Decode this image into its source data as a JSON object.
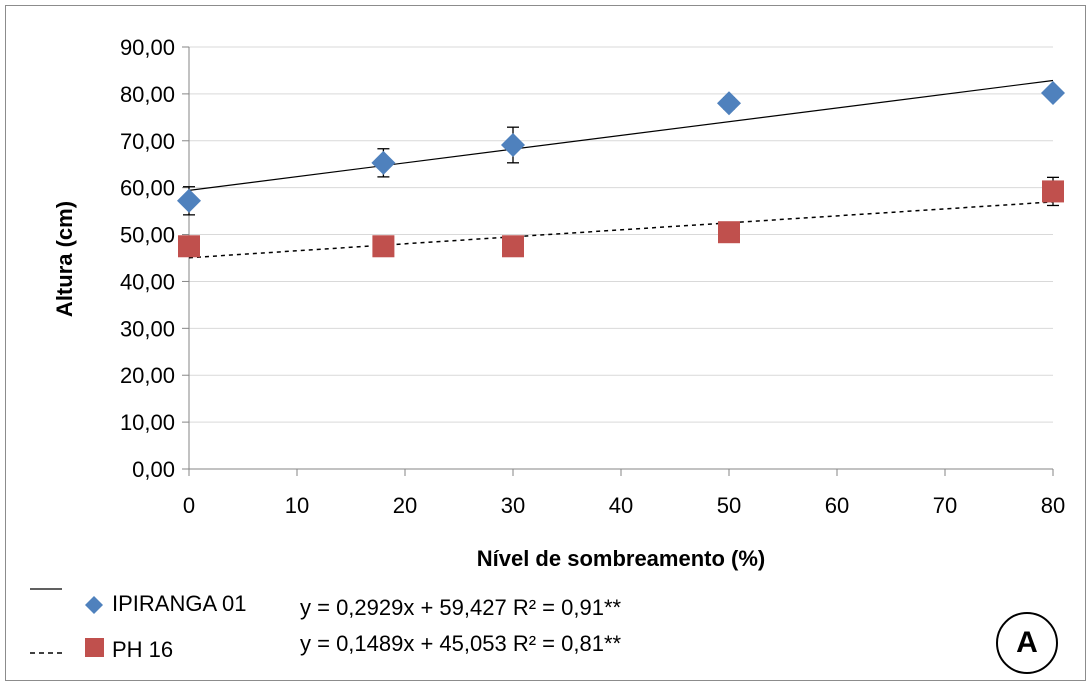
{
  "chart_data": {
    "type": "scatter",
    "xlabel": "Nível de sombreamento (%)",
    "ylabel": "Altura (cm)",
    "xlim": [
      0,
      80
    ],
    "ylim": [
      0,
      90
    ],
    "xticks": [
      "0",
      "10",
      "20",
      "30",
      "40",
      "50",
      "60",
      "70",
      "80"
    ],
    "yticks": [
      "0,00",
      "10,00",
      "20,00",
      "30,00",
      "40,00",
      "50,00",
      "60,00",
      "70,00",
      "80,00",
      "90,00"
    ],
    "x": [
      0,
      18,
      30,
      50,
      80
    ],
    "series": [
      {
        "name": "IPIRANGA 01",
        "marker": "diamond",
        "color": "#4f81bd",
        "values": [
          57.2,
          65.3,
          69.1,
          78.0,
          80.2
        ],
        "error": [
          3.0,
          3.0,
          3.8,
          1.2,
          1.0
        ],
        "trendline": {
          "slope": 0.2929,
          "intercept": 59.427,
          "style": "solid"
        },
        "equation": "y = 0,2929x + 59,427  R² = 0,91**"
      },
      {
        "name": "PH 16",
        "marker": "square",
        "color": "#c0504d",
        "values": [
          47.5,
          47.5,
          47.5,
          50.5,
          59.2
        ],
        "error": [
          1.0,
          1.0,
          1.0,
          1.0,
          3.0
        ],
        "trendline": {
          "slope": 0.1489,
          "intercept": 45.053,
          "style": "dashed"
        },
        "equation": "y = 0,1489x + 45,053  R² = 0,81**"
      }
    ],
    "grid": "horizontal",
    "legend_position": "bottom-left"
  },
  "legend": {
    "ipiranga": {
      "line_symbol": "—",
      "label": "IPIRANGA 01",
      "equation": "y = 0,2929x + 59,427  R² = 0,91**"
    },
    "ph16": {
      "line_symbol": "---",
      "label": "PH 16",
      "equation": "y = 0,1489x + 45,053  R² = 0,81**"
    }
  },
  "panel_label": "A"
}
